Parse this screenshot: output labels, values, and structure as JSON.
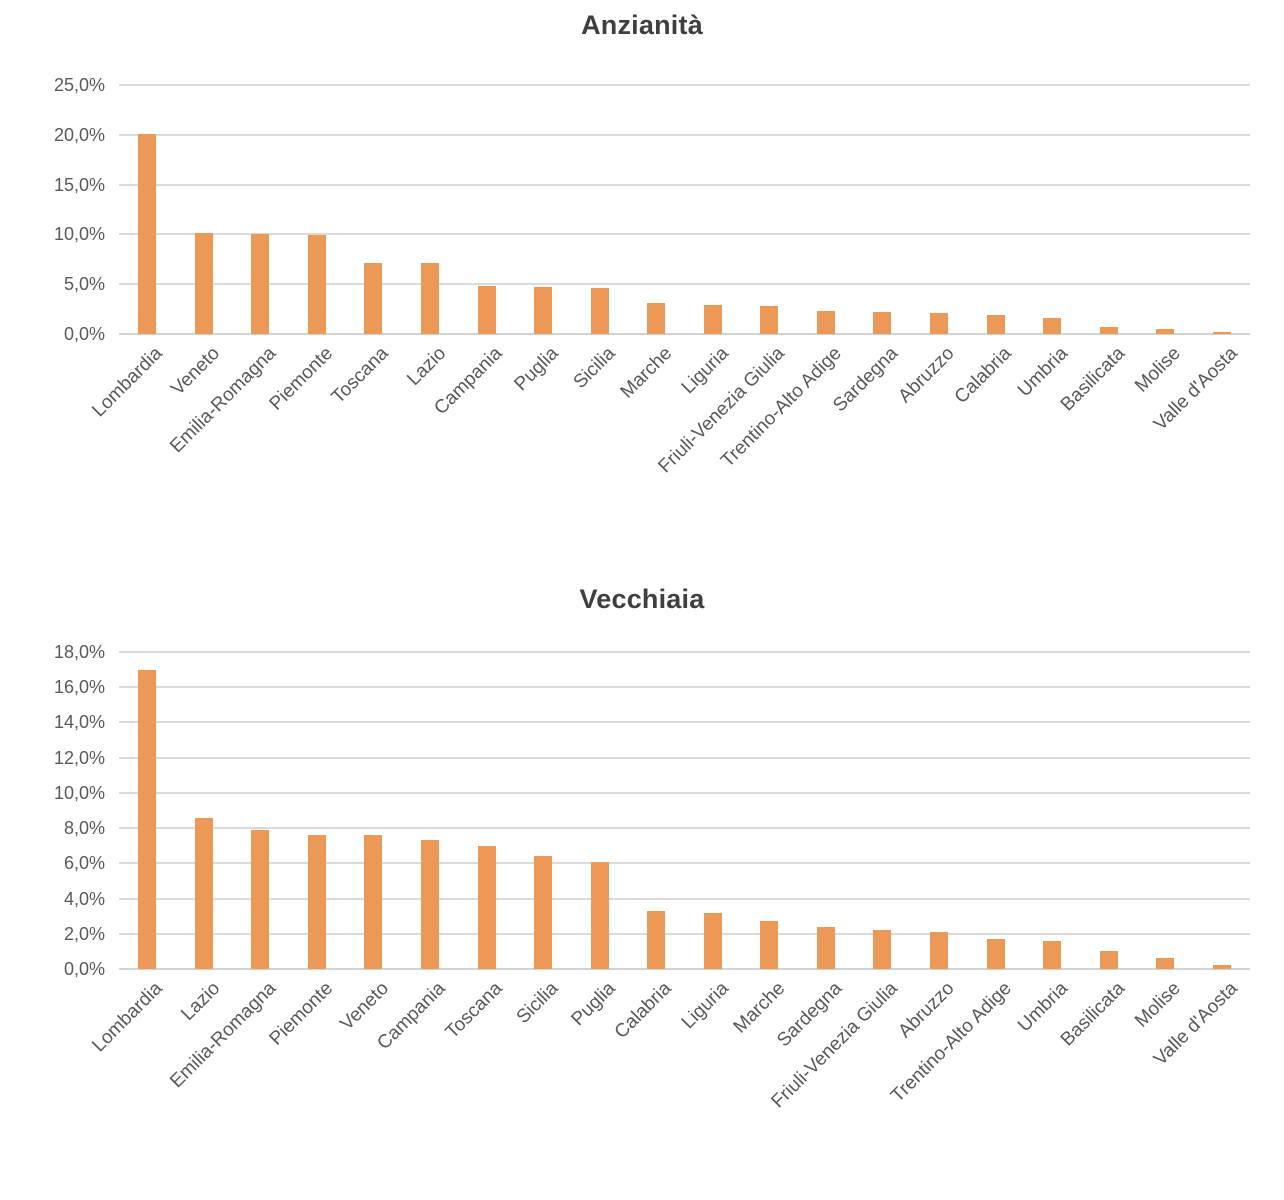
{
  "colors": {
    "bar": "#EC9856",
    "gridline": "#DBDBDB",
    "axis_line": "#D2D2D2",
    "tick_label": "#595959",
    "title": "#3F3F3F",
    "background": "#FFFFFF"
  },
  "chart_data": [
    {
      "type": "bar",
      "title": "Anzianità",
      "xlabel": "",
      "ylabel": "",
      "legend": "none",
      "grid": true,
      "ylim": [
        0,
        25
      ],
      "ytick_step": 5,
      "ytick_labels": [
        "25,0%",
        "20,0%",
        "15,0%",
        "10,0%",
        "5,0%",
        "0,0%"
      ],
      "categories": [
        "Lombardia",
        "Veneto",
        "Emilia-Romagna",
        "Piemonte",
        "Toscana",
        "Lazio",
        "Campania",
        "Puglia",
        "Sicilia",
        "Marche",
        "Liguria",
        "Friuli-Venezia Giulia",
        "Trentino-Alto Adige",
        "Sardegna",
        "Abruzzo",
        "Calabria",
        "Umbria",
        "Basilicata",
        "Molise",
        "Valle d'Aosta"
      ],
      "values": [
        20.1,
        10.15,
        10.0,
        9.9,
        7.1,
        7.1,
        4.8,
        4.7,
        4.6,
        3.1,
        2.9,
        2.8,
        2.3,
        2.2,
        2.1,
        1.9,
        1.6,
        0.7,
        0.5,
        0.2
      ],
      "value_unit": "%"
    },
    {
      "type": "bar",
      "title": "Vecchiaia",
      "xlabel": "",
      "ylabel": "",
      "legend": "none",
      "grid": true,
      "ylim": [
        0,
        18
      ],
      "ytick_step": 2,
      "ytick_labels": [
        "18,0%",
        "16,0%",
        "14,0%",
        "12,0%",
        "10,0%",
        "8,0%",
        "6,0%",
        "4,0%",
        "2,0%",
        "0,0%"
      ],
      "categories": [
        "Lombardia",
        "Lazio",
        "Emilia-Romagna",
        "Piemonte",
        "Veneto",
        "Campania",
        "Toscana",
        "Sicilia",
        "Puglia",
        "Calabria",
        "Liguria",
        "Marche",
        "Sardegna",
        "Friuli-Venezia Giulia",
        "Abruzzo",
        "Trentino-Alto Adige",
        "Umbria",
        "Basilicata",
        "Molise",
        "Valle d'Aosta"
      ],
      "values": [
        17.0,
        8.6,
        7.9,
        7.6,
        7.6,
        7.3,
        7.0,
        6.4,
        6.1,
        3.3,
        3.2,
        2.7,
        2.4,
        2.2,
        2.1,
        1.7,
        1.6,
        1.0,
        0.6,
        0.25
      ],
      "value_unit": "%"
    }
  ]
}
